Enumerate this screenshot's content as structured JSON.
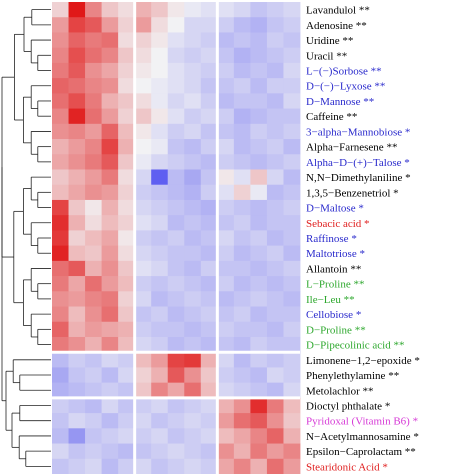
{
  "chart_data": {
    "type": "heatmap",
    "title": "",
    "rows": [
      {
        "label": "Lavandulol",
        "sig": "**",
        "color": "#000000"
      },
      {
        "label": "Adenosine",
        "sig": "**",
        "color": "#000000"
      },
      {
        "label": "Uridine",
        "sig": "**",
        "color": "#000000"
      },
      {
        "label": "Uracil",
        "sig": "**",
        "color": "#000000"
      },
      {
        "label": "L−(−)Sorbose",
        "sig": "**",
        "color": "#2a2acc"
      },
      {
        "label": "D−(−)−Lyxose",
        "sig": "**",
        "color": "#2a2acc"
      },
      {
        "label": "D−Mannose",
        "sig": "**",
        "color": "#2a2acc"
      },
      {
        "label": "Caffeine",
        "sig": "**",
        "color": "#000000"
      },
      {
        "label": "3−alpha−Mannobiose",
        "sig": "*",
        "color": "#2a2acc"
      },
      {
        "label": "Alpha−Farnesene",
        "sig": "**",
        "color": "#000000"
      },
      {
        "label": "Alpha−D−(+)−Talose",
        "sig": "*",
        "color": "#2a2acc"
      },
      {
        "label": "N,N−Dimethylaniline",
        "sig": "*",
        "color": "#000000"
      },
      {
        "label": "1,3,5−Benzenetriol",
        "sig": "*",
        "color": "#000000"
      },
      {
        "label": "D−Maltose",
        "sig": "*",
        "color": "#2a2acc"
      },
      {
        "label": "Sebacic acid",
        "sig": "*",
        "color": "#e02020"
      },
      {
        "label": "Raffinose",
        "sig": "*",
        "color": "#2a2acc"
      },
      {
        "label": "Maltotriose",
        "sig": "*",
        "color": "#2a2acc"
      },
      {
        "label": "Allantoin",
        "sig": "**",
        "color": "#000000"
      },
      {
        "label": "L−Proline",
        "sig": "**",
        "color": "#2ea82e"
      },
      {
        "label": "Ile−Leu",
        "sig": "**",
        "color": "#2ea82e"
      },
      {
        "label": "Cellobiose",
        "sig": "*",
        "color": "#2a2acc"
      },
      {
        "label": "D−Proline",
        "sig": "**",
        "color": "#2ea82e"
      },
      {
        "label": "D−Pipecolinic acid",
        "sig": "**",
        "color": "#2ea82e"
      },
      {
        "label": "Limonene−1,2−epoxide",
        "sig": "*",
        "color": "#000000"
      },
      {
        "label": "Phenylethylamine",
        "sig": "**",
        "color": "#000000"
      },
      {
        "label": "Metolachlor",
        "sig": "**",
        "color": "#000000"
      },
      {
        "label": "Dioctyl phthalate",
        "sig": "*",
        "color": "#000000"
      },
      {
        "label": "Pyridoxal (Vitamin B6)",
        "sig": "*",
        "color": "#d63ad6"
      },
      {
        "label": "N−Acetylmannosamine",
        "sig": "*",
        "color": "#000000"
      },
      {
        "label": "Epsilon−Caprolactam",
        "sig": "**",
        "color": "#000000"
      },
      {
        "label": "Stearidonic Acid",
        "sig": "*",
        "color": "#e02020"
      }
    ],
    "column_groups": [
      5,
      5,
      5
    ],
    "row_groups": [
      23,
      3,
      5
    ],
    "color_scale": {
      "low": "#3a3af0",
      "mid": "#f2f2f4",
      "high": "#e01818",
      "range": [
        -2,
        2
      ]
    },
    "values": [
      [
        0.3,
        2.2,
        1.0,
        0.4,
        0.2,
        0.6,
        0.4,
        0.1,
        -0.1,
        -0.2,
        -0.2,
        -0.3,
        -0.5,
        -0.4,
        -0.3
      ],
      [
        0.8,
        1.6,
        1.4,
        0.8,
        0.3,
        0.8,
        0.2,
        0.0,
        -0.3,
        -0.3,
        -0.4,
        -0.6,
        -0.7,
        -0.5,
        -0.4
      ],
      [
        0.9,
        1.3,
        1.1,
        1.2,
        0.2,
        0.3,
        0.1,
        -0.2,
        -0.3,
        -0.4,
        -0.6,
        -0.5,
        -0.6,
        -0.4,
        -0.5
      ],
      [
        1.0,
        1.5,
        1.2,
        1.0,
        0.4,
        0.2,
        0.0,
        -0.3,
        -0.4,
        -0.3,
        -0.5,
        -0.7,
        -0.6,
        -0.5,
        -0.4
      ],
      [
        1.1,
        1.4,
        0.9,
        0.7,
        0.3,
        0.1,
        0.0,
        -0.2,
        -0.3,
        -0.4,
        -0.4,
        -0.6,
        -0.5,
        -0.6,
        -0.3
      ],
      [
        1.3,
        1.2,
        1.0,
        0.9,
        0.2,
        0.0,
        -0.1,
        -0.2,
        -0.3,
        -0.5,
        -0.5,
        -0.4,
        -0.6,
        -0.4,
        -0.4
      ],
      [
        1.2,
        1.5,
        1.1,
        0.6,
        0.4,
        0.2,
        -0.1,
        -0.3,
        -0.2,
        -0.4,
        -0.6,
        -0.5,
        -0.5,
        -0.6,
        -0.3
      ],
      [
        1.0,
        1.9,
        1.2,
        0.8,
        0.3,
        0.4,
        0.1,
        -0.2,
        -0.4,
        -0.3,
        -0.4,
        -0.7,
        -0.6,
        -0.5,
        -0.5
      ],
      [
        0.9,
        1.0,
        0.8,
        1.3,
        0.5,
        0.1,
        -0.2,
        -0.4,
        -0.3,
        -0.5,
        -0.5,
        -0.6,
        -0.4,
        -0.5,
        -0.4
      ],
      [
        0.6,
        0.8,
        1.0,
        1.6,
        0.6,
        0.0,
        -0.1,
        -0.5,
        -0.6,
        -0.4,
        -0.3,
        -0.6,
        -0.5,
        -0.4,
        -0.6
      ],
      [
        0.7,
        0.9,
        1.1,
        1.4,
        0.4,
        -0.1,
        -0.3,
        -0.4,
        -0.5,
        -0.6,
        -0.4,
        -0.5,
        -0.6,
        -0.5,
        -0.4
      ],
      [
        0.4,
        0.6,
        0.8,
        1.1,
        0.2,
        -0.3,
        -1.6,
        -0.6,
        -0.8,
        -0.5,
        0.1,
        -0.2,
        0.4,
        -0.3,
        -0.6
      ],
      [
        0.5,
        0.7,
        0.9,
        0.8,
        0.3,
        -0.4,
        -0.5,
        -0.6,
        -0.7,
        -0.4,
        -0.2,
        0.3,
        -0.1,
        -0.6,
        -0.5
      ],
      [
        1.6,
        0.4,
        0.1,
        0.6,
        0.2,
        -0.3,
        -0.4,
        -0.5,
        -0.6,
        -0.7,
        -0.4,
        -0.5,
        -0.6,
        -0.5,
        -0.4
      ],
      [
        1.8,
        0.6,
        0.2,
        0.5,
        0.3,
        -0.2,
        -0.3,
        -0.6,
        -0.5,
        -0.6,
        -0.5,
        -0.4,
        -0.6,
        -0.5,
        -0.5
      ],
      [
        1.7,
        0.3,
        0.5,
        0.7,
        0.1,
        -0.4,
        -0.5,
        -0.4,
        -0.6,
        -0.5,
        -0.3,
        -0.5,
        -0.4,
        -0.6,
        -0.5
      ],
      [
        1.9,
        0.5,
        0.4,
        0.8,
        0.2,
        -0.3,
        -0.4,
        -0.5,
        -0.5,
        -0.6,
        -0.4,
        -0.6,
        -0.5,
        -0.4,
        -0.6
      ],
      [
        1.2,
        1.4,
        0.6,
        0.9,
        0.4,
        -0.2,
        -0.3,
        -0.5,
        -0.6,
        -0.4,
        -0.5,
        -0.5,
        -0.6,
        -0.5,
        -0.4
      ],
      [
        1.1,
        0.7,
        1.2,
        0.8,
        0.5,
        -0.4,
        -0.5,
        -0.4,
        -0.5,
        -0.6,
        -0.4,
        -0.6,
        -0.5,
        -0.6,
        -0.5
      ],
      [
        0.9,
        0.8,
        1.0,
        1.1,
        0.3,
        -0.3,
        -0.6,
        -0.5,
        -0.4,
        -0.5,
        -0.6,
        -0.5,
        -0.4,
        -0.5,
        -0.6
      ],
      [
        1.0,
        0.5,
        0.9,
        1.2,
        0.4,
        -0.5,
        -0.4,
        -0.6,
        -0.5,
        -0.4,
        -0.5,
        -0.4,
        -0.6,
        -0.5,
        -0.5
      ],
      [
        1.3,
        0.6,
        0.8,
        0.7,
        0.6,
        -0.4,
        -0.5,
        -0.5,
        -0.6,
        -0.5,
        -0.4,
        -0.5,
        -0.5,
        -0.6,
        -0.4
      ],
      [
        1.1,
        0.9,
        0.6,
        1.0,
        0.5,
        -0.3,
        -0.4,
        -0.6,
        -0.5,
        -0.6,
        -0.5,
        -0.6,
        -0.4,
        -0.5,
        -0.5
      ],
      [
        -0.6,
        -0.4,
        -0.5,
        -0.3,
        -0.4,
        0.5,
        0.8,
        1.6,
        1.7,
        0.6,
        -0.3,
        -0.6,
        -0.4,
        -0.5,
        -0.4
      ],
      [
        -0.8,
        -0.5,
        -0.4,
        -0.6,
        -0.3,
        0.3,
        0.6,
        1.4,
        0.9,
        0.4,
        -0.4,
        -0.5,
        -0.6,
        -0.3,
        -0.4
      ],
      [
        -0.7,
        -0.6,
        -0.5,
        -0.4,
        -0.5,
        0.4,
        1.0,
        0.7,
        1.2,
        0.5,
        -0.3,
        -0.4,
        -0.5,
        -0.6,
        -0.3
      ],
      [
        -0.4,
        -0.5,
        -0.6,
        -0.3,
        -0.5,
        -0.4,
        -0.3,
        -0.5,
        -0.4,
        -0.3,
        0.6,
        0.9,
        1.8,
        1.1,
        0.5
      ],
      [
        -0.5,
        -0.3,
        -0.4,
        -0.6,
        -0.4,
        -0.3,
        -0.5,
        -0.4,
        -0.3,
        -0.4,
        0.8,
        1.2,
        1.4,
        0.9,
        0.4
      ],
      [
        -0.6,
        -1.0,
        -0.5,
        -0.4,
        -0.3,
        -0.4,
        -0.3,
        -0.5,
        -0.4,
        -0.3,
        0.5,
        0.7,
        1.0,
        1.3,
        0.6
      ],
      [
        -0.3,
        -0.5,
        -0.4,
        -0.5,
        -0.6,
        -0.5,
        -0.4,
        -0.3,
        -0.4,
        -0.5,
        0.9,
        0.6,
        1.1,
        0.8,
        1.0
      ],
      [
        -0.5,
        -0.4,
        -0.3,
        -0.6,
        -0.4,
        -0.3,
        -0.5,
        -0.4,
        -0.3,
        -0.4,
        0.7,
        1.0,
        0.6,
        1.2,
        0.8
      ]
    ],
    "legend": "none",
    "grid": false
  }
}
